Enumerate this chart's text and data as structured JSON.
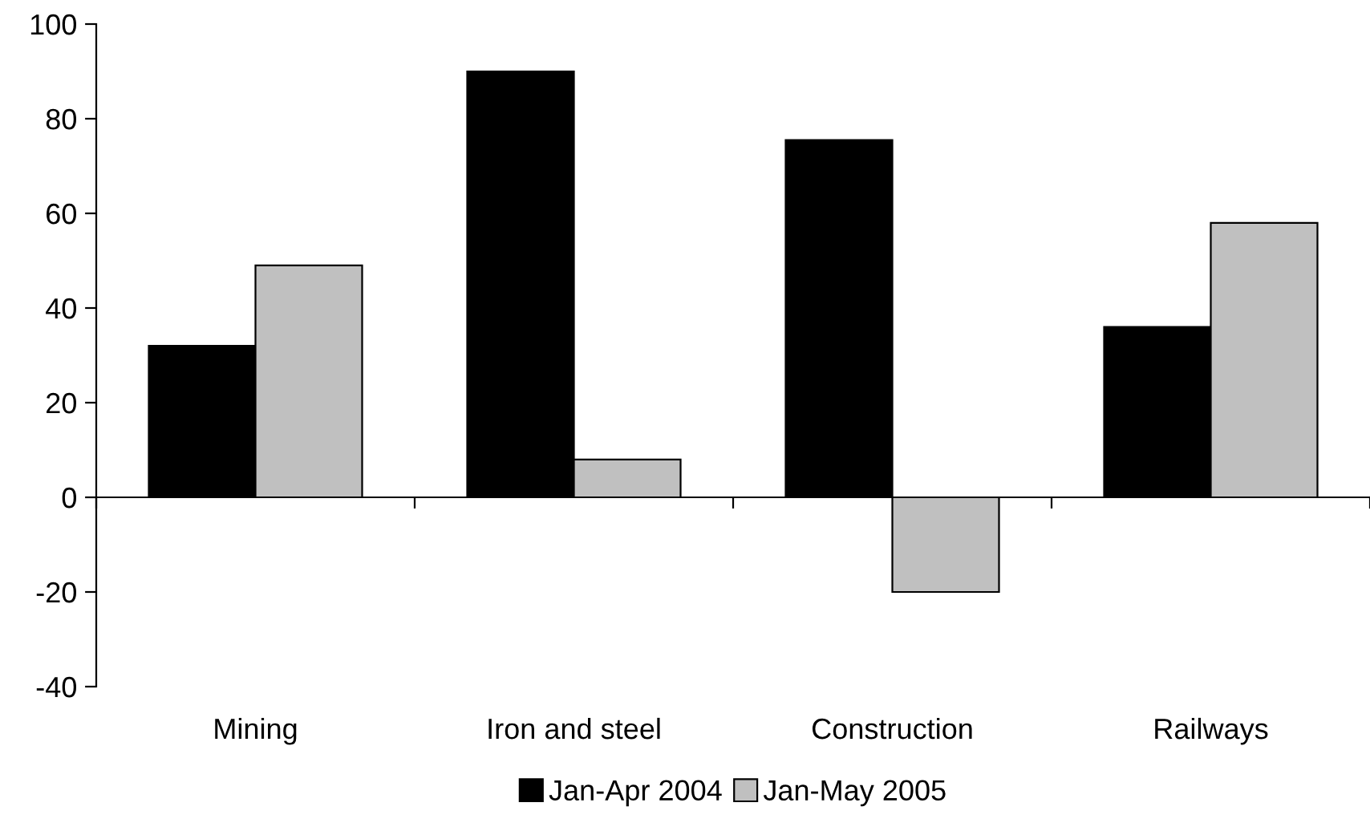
{
  "chart_data": {
    "type": "bar",
    "categories": [
      "Mining",
      "Iron and steel",
      "Construction",
      "Railways"
    ],
    "series": [
      {
        "name": "Jan-Apr 2004",
        "color": "#000000",
        "values": [
          32,
          90,
          75.5,
          36
        ]
      },
      {
        "name": "Jan-May 2005",
        "color": "#c0c0c0",
        "values": [
          49,
          8,
          -20,
          58
        ]
      }
    ],
    "ylim": [
      -40,
      100
    ],
    "yticks": [
      -40,
      -20,
      0,
      20,
      40,
      60,
      80,
      100
    ],
    "legend": "bottom"
  }
}
